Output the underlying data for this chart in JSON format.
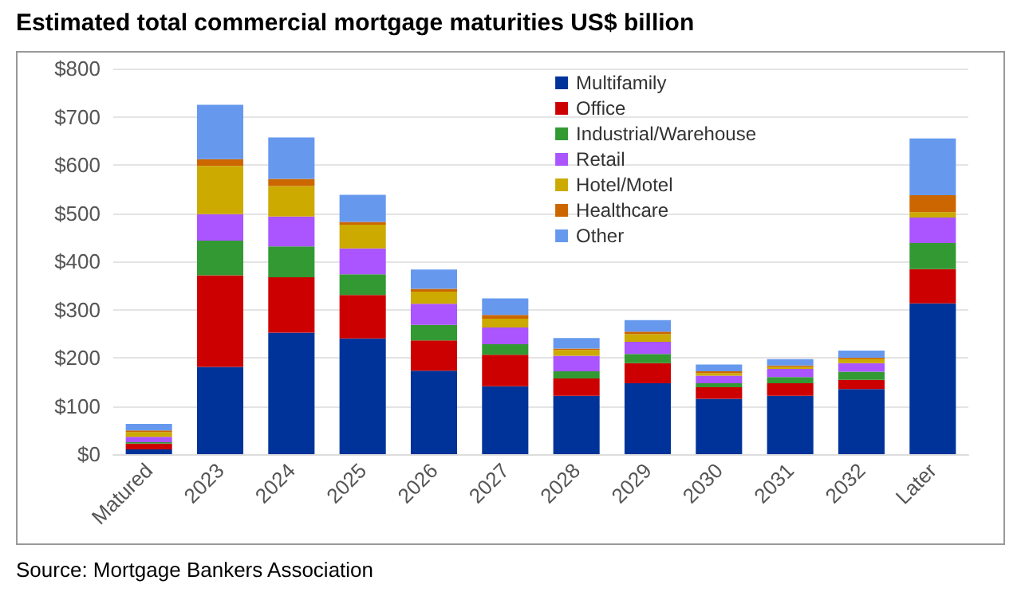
{
  "chart_data": {
    "type": "bar",
    "stacked": true,
    "title": "Estimated total commercial mortgage maturities US$ billion",
    "categories": [
      "Matured",
      "2023",
      "2024",
      "2025",
      "2026",
      "2027",
      "2028",
      "2029",
      "2030",
      "2031",
      "2032",
      "Later"
    ],
    "series": [
      {
        "name": "Multifamily",
        "color": "#003399",
        "values": [
          10,
          181,
          252,
          240,
          173,
          141,
          121,
          147,
          115,
          121,
          135,
          313
        ]
      },
      {
        "name": "Office",
        "color": "#cc0000",
        "values": [
          12,
          190,
          115,
          90,
          63,
          65,
          36,
          42,
          24,
          26,
          19,
          71
        ]
      },
      {
        "name": "Industrial/Warehouse",
        "color": "#339933",
        "values": [
          3,
          72,
          64,
          43,
          32,
          22,
          15,
          19,
          8,
          13,
          17,
          54
        ]
      },
      {
        "name": "Retail",
        "color": "#aa55ff",
        "values": [
          11,
          55,
          62,
          54,
          44,
          35,
          32,
          25,
          16,
          17,
          18,
          53
        ]
      },
      {
        "name": "Hotel/Motel",
        "color": "#ccaa00",
        "values": [
          10,
          100,
          63,
          49,
          25,
          18,
          12,
          16,
          5,
          4,
          8,
          11
        ]
      },
      {
        "name": "Healthcare",
        "color": "#cc6600",
        "values": [
          3,
          14,
          15,
          6,
          6,
          8,
          3,
          5,
          4,
          3,
          3,
          35
        ]
      },
      {
        "name": "Other",
        "color": "#6699ee",
        "values": [
          14,
          113,
          86,
          56,
          40,
          34,
          22,
          24,
          14,
          13,
          15,
          118
        ]
      }
    ],
    "ylim": [
      0,
      800
    ],
    "yticks": [
      {
        "value": 0,
        "label": "$0"
      },
      {
        "value": 100,
        "label": "$100"
      },
      {
        "value": 200,
        "label": "$200"
      },
      {
        "value": 300,
        "label": "$300"
      },
      {
        "value": 400,
        "label": "$400"
      },
      {
        "value": 500,
        "label": "$500"
      },
      {
        "value": 600,
        "label": "$600"
      },
      {
        "value": 700,
        "label": "$700"
      },
      {
        "value": 800,
        "label": "$800"
      }
    ],
    "grid": "y",
    "legend": "top right",
    "annotations": [
      "Source: Mortgage Bankers Association"
    ]
  }
}
